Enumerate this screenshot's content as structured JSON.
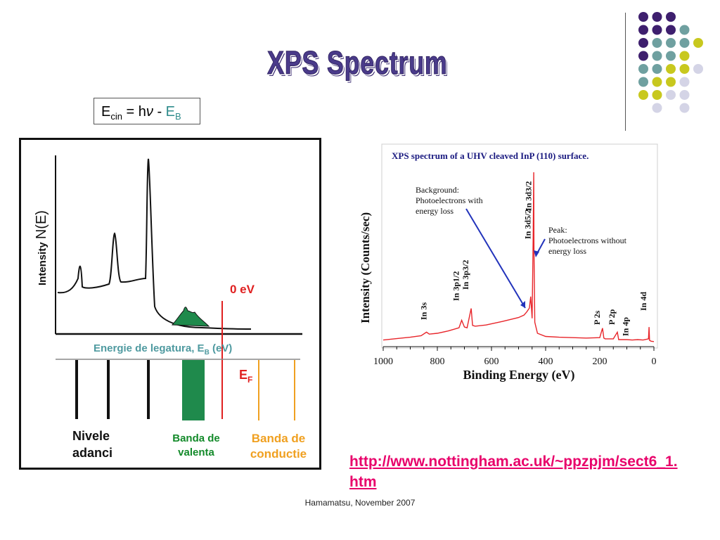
{
  "slide_title": "XPS Spectrum",
  "formula": {
    "e": "E",
    "cin": "cin",
    "eq": " = h",
    "nu": "ν",
    "minus": " - ",
    "eb": "E",
    "b": "B"
  },
  "left_diagram": {
    "ylabel_prefix": "Intensity ",
    "ylabel_main": "N(E)",
    "zero_ev": "0 eV",
    "xlabel_main": "Energie de legatura, E",
    "xlabel_sub": "B",
    "xlabel_unit": " (eV)",
    "ef_main": "E",
    "ef_sub": "F",
    "core_levels": [
      "Nivele",
      "adanci"
    ],
    "valence_band": [
      "Banda de",
      "valenta"
    ],
    "conduction_band": [
      "Banda de",
      "conductie"
    ]
  },
  "chart_data": {
    "type": "line",
    "title": "XPS spectrum of a UHV cleaved InP (110) surface.",
    "xlabel": "Binding Energy (eV)",
    "ylabel": "Intensity (Counts/sec)",
    "xlim": [
      1000,
      0
    ],
    "xticks": [
      "1000",
      "800",
      "600",
      "400",
      "200",
      "0"
    ],
    "x": [
      1000,
      960,
      900,
      860,
      840,
      830,
      800,
      760,
      720,
      710,
      700,
      690,
      675,
      670,
      660,
      620,
      560,
      500,
      480,
      470,
      460,
      455,
      450,
      446,
      444,
      443,
      440,
      430,
      400,
      350,
      300,
      250,
      200,
      190,
      185,
      180,
      150,
      135,
      130,
      120,
      100,
      80,
      60,
      40,
      20,
      18,
      16,
      10,
      0
    ],
    "y": [
      1.5,
      1.8,
      2.2,
      2.6,
      3.5,
      3.0,
      3.2,
      3.8,
      4.6,
      6.5,
      4.8,
      4.6,
      9.5,
      5.2,
      5.0,
      5.3,
      6.2,
      7.2,
      7.8,
      8.6,
      9.6,
      12.5,
      7.0,
      28.0,
      44.0,
      25.0,
      6.0,
      3.2,
      2.4,
      2.2,
      2.1,
      2.0,
      2.1,
      4.5,
      2.0,
      1.8,
      1.8,
      3.5,
      1.6,
      1.6,
      1.6,
      1.5,
      1.6,
      1.5,
      1.8,
      4.8,
      1.4,
      1.2,
      1.1
    ],
    "peak_labels": [
      "In 3s",
      "In 3p1/2",
      "In 3p3/2",
      "In 3d5/2",
      "In 3d3/2",
      "P 2s",
      "P 2p",
      "In 4p",
      "In 4d"
    ],
    "annotations": {
      "background": [
        "Background:",
        "Photoelectrons with",
        "energy loss"
      ],
      "peak": [
        "Peak:",
        "Photoelectrons without",
        "energy loss"
      ]
    },
    "line_color": "#e8252a",
    "arrow_color": "#2233bb"
  },
  "link_lines": [
    "http://www.nottingham.ac.uk/~ppzpjm/sect6_1.",
    "htm"
  ],
  "footer": "Hamamatsu, November 2007",
  "colors": {
    "purple": "#3e1f6e",
    "teal": "#6fa0a0",
    "yellow": "#c8c81e",
    "lavender": "#d4d4e6",
    "link": "#e8006a",
    "red": "#e02020",
    "orange": "#f0a020",
    "green_fill": "#1f8a4c",
    "teal_text": "#4f9aa0",
    "green_text": "#138a2a"
  }
}
